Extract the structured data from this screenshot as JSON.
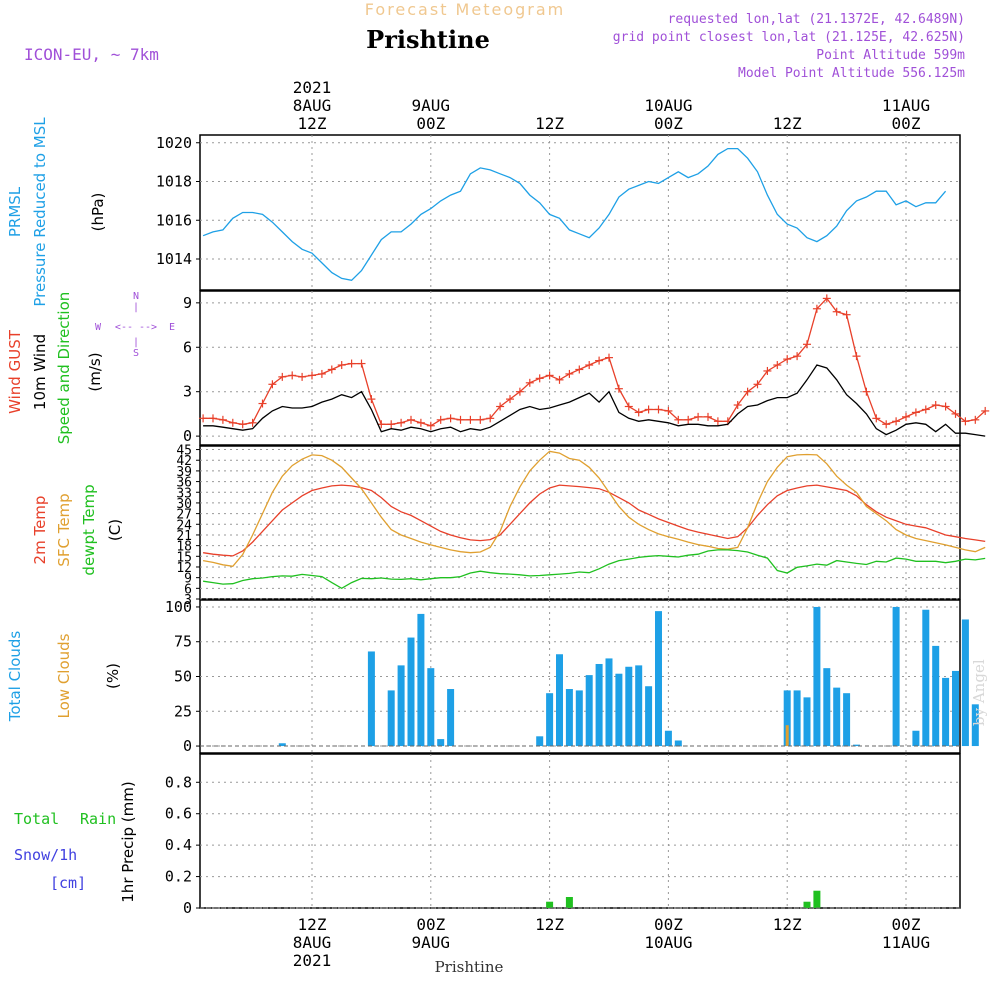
{
  "header": {
    "product": "Forecast Meteogram",
    "location": "Prishtine",
    "model": "ICON-EU, ~ 7km",
    "requested": "requested lon,lat (21.1372E, 42.6489N)",
    "grid": "grid point closest lon,lat (21.125E, 42.625N)",
    "point_alt": "Point Altitude 599m",
    "model_alt": "Model Point Altitude 556.125m"
  },
  "footer": {
    "location": "Prishtine",
    "credit": "by Angel"
  },
  "colors": {
    "pressure": "#1ea0e6",
    "gust": "#e8402a",
    "wind": "#000000",
    "purple": "#a050d8",
    "temp2m": "#e8402a",
    "sfc": "#e0a030",
    "dewpt": "#20c020",
    "total_clouds": "#1ea0e6",
    "low_clouds": "#e0a030",
    "rain": "#20c020",
    "snow": "#4040e0"
  },
  "time_axis": {
    "top_labels": [
      {
        "lines": [
          "2021",
          "8AUG",
          "12Z"
        ],
        "hour": 12
      },
      {
        "lines": [
          "9AUG",
          "00Z"
        ],
        "hour": 24
      },
      {
        "lines": [
          "12Z"
        ],
        "hour": 36
      },
      {
        "lines": [
          "10AUG",
          "00Z"
        ],
        "hour": 48
      },
      {
        "lines": [
          "12Z"
        ],
        "hour": 60
      },
      {
        "lines": [
          "11AUG",
          "00Z"
        ],
        "hour": 72
      }
    ],
    "bottom_labels": [
      {
        "lines": [
          "12Z",
          "8AUG",
          "2021"
        ],
        "hour": 12
      },
      {
        "lines": [
          "00Z",
          "9AUG"
        ],
        "hour": 24
      },
      {
        "lines": [
          "12Z"
        ],
        "hour": 36
      },
      {
        "lines": [
          "00Z",
          "10AUG"
        ],
        "hour": 48
      },
      {
        "lines": [
          "12Z"
        ],
        "hour": 60
      },
      {
        "lines": [
          "00Z",
          "11AUG"
        ],
        "hour": 72
      }
    ]
  },
  "chart_data": [
    {
      "type": "line",
      "panel": "pressure",
      "ylabel_lines": [
        "PRMSL",
        "Pressure Reduced to MSL",
        "(hPa)"
      ],
      "yticks": [
        1014,
        1016,
        1018,
        1020
      ],
      "ylim": [
        1012.4,
        1020.4
      ],
      "x_start_hour": 1,
      "x_step_hours": 1,
      "series": [
        {
          "values": [
            1015.2,
            1015.4,
            1015.5,
            1016.1,
            1016.4,
            1016.4,
            1016.3,
            1015.9,
            1015.4,
            1014.9,
            1014.5,
            1014.3,
            1013.8,
            1013.3,
            1013.0,
            1012.9,
            1013.4,
            1014.2,
            1015.0,
            1015.4,
            1015.4,
            1015.8,
            1016.3,
            1016.6,
            1017.0,
            1017.3,
            1017.5,
            1018.4,
            1018.7,
            1018.6,
            1018.4,
            1018.2,
            1017.9,
            1017.3,
            1016.9,
            1016.3,
            1016.1,
            1015.5,
            1015.3,
            1015.1,
            1015.6,
            1016.3,
            1017.2,
            1017.6,
            1017.8,
            1018.0,
            1017.9,
            1018.2,
            1018.5,
            1018.2,
            1018.4,
            1018.8,
            1019.4,
            1019.7,
            1019.7,
            1019.2,
            1018.5,
            1017.3,
            1016.3,
            1015.8,
            1015.6,
            1015.1,
            1014.9,
            1015.2,
            1015.7,
            1016.5,
            1017.0,
            1017.2,
            1017.5,
            1017.5,
            1016.8,
            1017.0,
            1016.7,
            1016.9,
            1016.9,
            1017.5
          ]
        }
      ]
    },
    {
      "type": "line",
      "panel": "wind",
      "ylabel_lines": [
        "Wind GUST",
        "10m Wind",
        "Speed and Direction",
        "(m/s)"
      ],
      "compass": {
        "n": "N",
        "s": "S",
        "w": "W",
        "e": "E"
      },
      "yticks": [
        0,
        3,
        6,
        9
      ],
      "ylim": [
        -0.6,
        9.8
      ],
      "x_start_hour": 1,
      "x_step_hours": 1,
      "series": [
        {
          "name": "Wind GUST",
          "values": [
            1.2,
            1.2,
            1.1,
            0.9,
            0.8,
            0.9,
            2.2,
            3.5,
            4.0,
            4.1,
            4.0,
            4.1,
            4.2,
            4.5,
            4.8,
            4.9,
            4.9,
            2.5,
            0.8,
            0.8,
            0.9,
            1.1,
            0.9,
            0.7,
            1.1,
            1.2,
            1.1,
            1.1,
            1.1,
            1.2,
            2.0,
            2.5,
            3.0,
            3.6,
            3.9,
            4.1,
            3.8,
            4.2,
            4.5,
            4.8,
            5.1,
            5.3,
            3.2,
            2.0,
            1.6,
            1.8,
            1.8,
            1.7,
            1.1,
            1.1,
            1.3,
            1.3,
            1.0,
            1.0,
            2.1,
            3.0,
            3.5,
            4.4,
            4.8,
            5.2,
            5.4,
            6.2,
            8.6,
            9.3,
            8.4,
            8.2,
            5.4,
            3.0,
            1.2,
            0.8,
            1.0,
            1.3,
            1.6,
            1.8,
            2.1,
            2.0,
            1.5,
            1.0,
            1.1,
            1.7
          ]
        },
        {
          "name": "10m Wind",
          "values": [
            0.7,
            0.7,
            0.6,
            0.5,
            0.4,
            0.5,
            1.2,
            1.7,
            2.0,
            1.9,
            1.9,
            2.0,
            2.3,
            2.5,
            2.8,
            2.6,
            3.0,
            1.8,
            0.3,
            0.5,
            0.4,
            0.6,
            0.5,
            0.3,
            0.5,
            0.6,
            0.3,
            0.5,
            0.4,
            0.6,
            1.0,
            1.4,
            1.8,
            2.0,
            1.8,
            1.9,
            2.1,
            2.3,
            2.6,
            2.9,
            2.3,
            3.0,
            1.6,
            1.2,
            1.0,
            1.1,
            1.0,
            0.9,
            0.7,
            0.8,
            0.8,
            0.7,
            0.7,
            0.8,
            1.5,
            2.0,
            2.1,
            2.4,
            2.6,
            2.6,
            2.9,
            3.8,
            4.8,
            4.6,
            3.8,
            2.8,
            2.2,
            1.5,
            0.5,
            0.1,
            0.4,
            0.8,
            0.9,
            0.8,
            0.3,
            0.8,
            0.2,
            0.2,
            0.1,
            0.0
          ]
        }
      ]
    },
    {
      "type": "line",
      "panel": "temperature",
      "ylabel_lines": [
        "2m Temp",
        "SFC Temp",
        "dewpt Temp",
        "(C)"
      ],
      "yticks": [
        3,
        6,
        9,
        12,
        15,
        18,
        21,
        24,
        27,
        30,
        33,
        36,
        39,
        42,
        45
      ],
      "ylim": [
        3,
        46
      ],
      "x_start_hour": 1,
      "x_step_hours": 1,
      "series": [
        {
          "name": "2m Temp",
          "values": [
            16,
            15.6,
            15.3,
            15.1,
            16.5,
            19,
            22,
            25,
            28,
            30,
            32,
            33.5,
            34.2,
            34.8,
            35,
            34.8,
            34.3,
            33.5,
            31.5,
            29,
            27.5,
            26.5,
            25,
            23.5,
            22,
            21,
            20.2,
            19.6,
            19.4,
            19.7,
            21,
            24,
            27,
            30,
            32.5,
            34.2,
            35,
            34.8,
            34.6,
            34.3,
            34,
            33,
            31.5,
            30,
            28,
            26.8,
            25.5,
            24.5,
            23.5,
            22.5,
            21.8,
            21.2,
            20.6,
            20,
            20.5,
            23,
            26.5,
            29.5,
            32,
            33.5,
            34.2,
            34.8,
            35,
            34.5,
            34,
            33.5,
            32,
            29.5,
            27.5,
            26,
            25,
            24,
            23.5,
            23,
            22,
            21,
            20.5,
            20,
            19.6,
            19.2
          ]
        },
        {
          "name": "SFC Temp",
          "values": [
            13.8,
            13.3,
            12.6,
            12.2,
            15.5,
            21,
            27,
            33,
            37.5,
            40.5,
            42.3,
            43.5,
            43.3,
            42,
            40,
            37,
            34,
            30,
            26,
            22.5,
            21,
            20,
            19,
            18.2,
            17.5,
            16.8,
            16.3,
            16,
            16.2,
            17.5,
            22,
            29,
            34.5,
            39,
            42,
            44.5,
            44,
            42.5,
            42,
            40,
            37,
            33,
            29,
            26,
            24,
            22.5,
            21.3,
            20.5,
            19.8,
            19,
            18.3,
            17.8,
            17.2,
            17,
            17.5,
            23,
            30,
            36,
            40,
            43,
            43.5,
            43.6,
            43.5,
            41,
            37.5,
            35,
            33,
            29,
            27,
            25,
            22.5,
            21,
            20,
            19.4,
            18.8,
            18.2,
            17.5,
            16.8,
            16.3,
            17.5
          ]
        },
        {
          "name": "dewpt Temp",
          "values": [
            8,
            7.6,
            7.2,
            7.3,
            8.2,
            8.7,
            8.9,
            9.3,
            9.5,
            9.4,
            9.9,
            9.6,
            9.3,
            7.6,
            6,
            7.6,
            8.8,
            8.7,
            8.9,
            8.6,
            8.5,
            8.7,
            8.4,
            8.7,
            9.0,
            9.0,
            9.3,
            10.3,
            10.8,
            10.4,
            10.1,
            10.0,
            9.8,
            9.5,
            9.6,
            9.8,
            10.0,
            10.2,
            10.6,
            10.4,
            11.5,
            12.8,
            13.8,
            14.2,
            14.7,
            15.0,
            15.2,
            15.0,
            14.8,
            15.3,
            15.6,
            16.5,
            16.8,
            16.8,
            16.6,
            16.2,
            15.3,
            14.5,
            11.0,
            10.3,
            11.9,
            12.3,
            12.8,
            12.5,
            13.8,
            13.4,
            13.0,
            12.7,
            13.6,
            13.4,
            14.5,
            14.2,
            13.6,
            13.6,
            13.6,
            13.2,
            13.6,
            14.2,
            14.0,
            14.4
          ]
        }
      ]
    },
    {
      "type": "bar",
      "panel": "clouds",
      "ylabel_lines": [
        "Total Clouds",
        "Low Clouds",
        "(%)"
      ],
      "yticks": [
        0,
        25,
        50,
        75,
        100
      ],
      "ylim": [
        -5,
        105
      ],
      "x_start_hour": 1,
      "x_step_hours": 1,
      "series": [
        {
          "name": "Total Clouds",
          "values": [
            0,
            0,
            0,
            0,
            0,
            0,
            0,
            0,
            2,
            0,
            0,
            0,
            0,
            0,
            0,
            0,
            0,
            68,
            0,
            40,
            58,
            78,
            95,
            56,
            5,
            41,
            0,
            0,
            0,
            0,
            0,
            0,
            0,
            0,
            7,
            38,
            66,
            41,
            40,
            51,
            59,
            63,
            52,
            57,
            58,
            43,
            97,
            11,
            4,
            0,
            0,
            0,
            0,
            0,
            0,
            0,
            0,
            0,
            0,
            40,
            40,
            35,
            100,
            56,
            42,
            38,
            1,
            0,
            0,
            0,
            100,
            0,
            11,
            98,
            72,
            49,
            54,
            91,
            30
          ]
        },
        {
          "name": "Low Clouds",
          "values": [
            0,
            0,
            0,
            0,
            0,
            0,
            0,
            0,
            0,
            0,
            0,
            0,
            0,
            0,
            0,
            0,
            0,
            0,
            0,
            0,
            0,
            0,
            0,
            0,
            0,
            0,
            0,
            0,
            0,
            0,
            0,
            0,
            0,
            0,
            0,
            0,
            0,
            0,
            0,
            0,
            0,
            0,
            0,
            0,
            0,
            0,
            0,
            0,
            0,
            0,
            0,
            0,
            0,
            0,
            0,
            0,
            0,
            0,
            0,
            15,
            0,
            0,
            0,
            0,
            0,
            0,
            0,
            0,
            0,
            0,
            0,
            0,
            0,
            0,
            0,
            0,
            0,
            0,
            0
          ]
        }
      ]
    },
    {
      "type": "bar",
      "panel": "precip",
      "ylabel_lines": [
        "1hr Precip (mm)"
      ],
      "left_labels": [
        "Total",
        "Rain",
        "Snow/1h",
        "[cm]"
      ],
      "yticks": [
        0,
        0.2,
        0.4,
        0.6,
        0.8
      ],
      "ylim": [
        0,
        0.98
      ],
      "x_start_hour": 1,
      "x_step_hours": 1,
      "series": [
        {
          "name": "Total Rain",
          "values": [
            0,
            0,
            0,
            0,
            0,
            0,
            0,
            0,
            0,
            0,
            0,
            0,
            0,
            0,
            0,
            0,
            0,
            0,
            0,
            0,
            0,
            0,
            0,
            0,
            0,
            0,
            0,
            0,
            0,
            0,
            0,
            0,
            0,
            0,
            0,
            0.04,
            0,
            0.07,
            0,
            0,
            0,
            0,
            0,
            0,
            0,
            0,
            0,
            0,
            0,
            0,
            0,
            0,
            0,
            0,
            0,
            0,
            0,
            0,
            0,
            0,
            0,
            0.04,
            0.11,
            0,
            0,
            0,
            0,
            0,
            0,
            0,
            0,
            0,
            0,
            0,
            0,
            0,
            0,
            0,
            0
          ]
        }
      ]
    }
  ]
}
